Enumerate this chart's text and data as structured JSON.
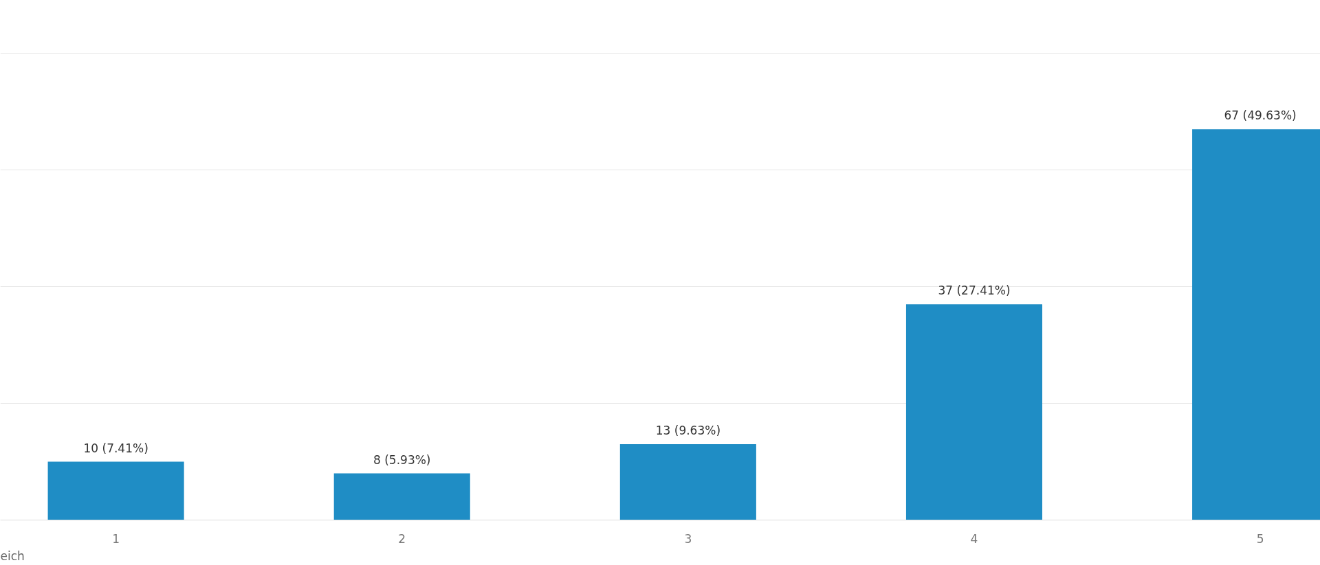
{
  "chart_data": {
    "type": "bar",
    "categories": [
      "1",
      "2",
      "3",
      "4",
      "5"
    ],
    "values": [
      10,
      8,
      13,
      37,
      67
    ],
    "value_labels": [
      "10 (7.41%)",
      "8 (5.93%)",
      "13 (9.63%)",
      "37 (27.41%)",
      "67 (49.63%)"
    ],
    "color": "#1f8dc5",
    "yticks": [
      {
        "value": 20,
        "label": null
      },
      {
        "value": 40,
        "label": null
      },
      {
        "value": 60,
        "label": null
      },
      {
        "value": 80,
        "label": null
      }
    ],
    "grid": "y",
    "tick_labels": "x",
    "annotations": [
      "eich"
    ]
  }
}
